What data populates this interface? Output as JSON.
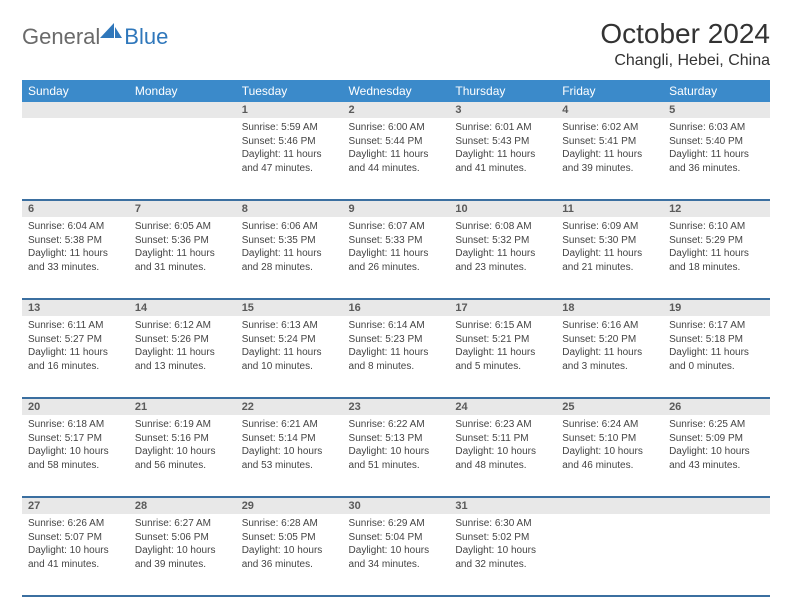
{
  "brand": {
    "part1": "General",
    "part2": "Blue"
  },
  "title": "October 2024",
  "location": "Changli, Hebei, China",
  "colors": {
    "header_bg": "#3b8aca",
    "header_text": "#ffffff",
    "daynum_bg": "#e8e8e8",
    "divider": "#3b6fa0",
    "logo_gray": "#6a6a6a",
    "logo_blue": "#2f77bb",
    "text": "#333333"
  },
  "typography": {
    "title_fontsize": 28,
    "location_fontsize": 16,
    "dayheader_fontsize": 12,
    "daynum_fontsize": 11,
    "cell_fontsize": 10
  },
  "day_headers": [
    "Sunday",
    "Monday",
    "Tuesday",
    "Wednesday",
    "Thursday",
    "Friday",
    "Saturday"
  ],
  "weeks": [
    [
      null,
      null,
      {
        "n": "1",
        "sr": "Sunrise: 5:59 AM",
        "ss": "Sunset: 5:46 PM",
        "dl": "Daylight: 11 hours and 47 minutes."
      },
      {
        "n": "2",
        "sr": "Sunrise: 6:00 AM",
        "ss": "Sunset: 5:44 PM",
        "dl": "Daylight: 11 hours and 44 minutes."
      },
      {
        "n": "3",
        "sr": "Sunrise: 6:01 AM",
        "ss": "Sunset: 5:43 PM",
        "dl": "Daylight: 11 hours and 41 minutes."
      },
      {
        "n": "4",
        "sr": "Sunrise: 6:02 AM",
        "ss": "Sunset: 5:41 PM",
        "dl": "Daylight: 11 hours and 39 minutes."
      },
      {
        "n": "5",
        "sr": "Sunrise: 6:03 AM",
        "ss": "Sunset: 5:40 PM",
        "dl": "Daylight: 11 hours and 36 minutes."
      }
    ],
    [
      {
        "n": "6",
        "sr": "Sunrise: 6:04 AM",
        "ss": "Sunset: 5:38 PM",
        "dl": "Daylight: 11 hours and 33 minutes."
      },
      {
        "n": "7",
        "sr": "Sunrise: 6:05 AM",
        "ss": "Sunset: 5:36 PM",
        "dl": "Daylight: 11 hours and 31 minutes."
      },
      {
        "n": "8",
        "sr": "Sunrise: 6:06 AM",
        "ss": "Sunset: 5:35 PM",
        "dl": "Daylight: 11 hours and 28 minutes."
      },
      {
        "n": "9",
        "sr": "Sunrise: 6:07 AM",
        "ss": "Sunset: 5:33 PM",
        "dl": "Daylight: 11 hours and 26 minutes."
      },
      {
        "n": "10",
        "sr": "Sunrise: 6:08 AM",
        "ss": "Sunset: 5:32 PM",
        "dl": "Daylight: 11 hours and 23 minutes."
      },
      {
        "n": "11",
        "sr": "Sunrise: 6:09 AM",
        "ss": "Sunset: 5:30 PM",
        "dl": "Daylight: 11 hours and 21 minutes."
      },
      {
        "n": "12",
        "sr": "Sunrise: 6:10 AM",
        "ss": "Sunset: 5:29 PM",
        "dl": "Daylight: 11 hours and 18 minutes."
      }
    ],
    [
      {
        "n": "13",
        "sr": "Sunrise: 6:11 AM",
        "ss": "Sunset: 5:27 PM",
        "dl": "Daylight: 11 hours and 16 minutes."
      },
      {
        "n": "14",
        "sr": "Sunrise: 6:12 AM",
        "ss": "Sunset: 5:26 PM",
        "dl": "Daylight: 11 hours and 13 minutes."
      },
      {
        "n": "15",
        "sr": "Sunrise: 6:13 AM",
        "ss": "Sunset: 5:24 PM",
        "dl": "Daylight: 11 hours and 10 minutes."
      },
      {
        "n": "16",
        "sr": "Sunrise: 6:14 AM",
        "ss": "Sunset: 5:23 PM",
        "dl": "Daylight: 11 hours and 8 minutes."
      },
      {
        "n": "17",
        "sr": "Sunrise: 6:15 AM",
        "ss": "Sunset: 5:21 PM",
        "dl": "Daylight: 11 hours and 5 minutes."
      },
      {
        "n": "18",
        "sr": "Sunrise: 6:16 AM",
        "ss": "Sunset: 5:20 PM",
        "dl": "Daylight: 11 hours and 3 minutes."
      },
      {
        "n": "19",
        "sr": "Sunrise: 6:17 AM",
        "ss": "Sunset: 5:18 PM",
        "dl": "Daylight: 11 hours and 0 minutes."
      }
    ],
    [
      {
        "n": "20",
        "sr": "Sunrise: 6:18 AM",
        "ss": "Sunset: 5:17 PM",
        "dl": "Daylight: 10 hours and 58 minutes."
      },
      {
        "n": "21",
        "sr": "Sunrise: 6:19 AM",
        "ss": "Sunset: 5:16 PM",
        "dl": "Daylight: 10 hours and 56 minutes."
      },
      {
        "n": "22",
        "sr": "Sunrise: 6:21 AM",
        "ss": "Sunset: 5:14 PM",
        "dl": "Daylight: 10 hours and 53 minutes."
      },
      {
        "n": "23",
        "sr": "Sunrise: 6:22 AM",
        "ss": "Sunset: 5:13 PM",
        "dl": "Daylight: 10 hours and 51 minutes."
      },
      {
        "n": "24",
        "sr": "Sunrise: 6:23 AM",
        "ss": "Sunset: 5:11 PM",
        "dl": "Daylight: 10 hours and 48 minutes."
      },
      {
        "n": "25",
        "sr": "Sunrise: 6:24 AM",
        "ss": "Sunset: 5:10 PM",
        "dl": "Daylight: 10 hours and 46 minutes."
      },
      {
        "n": "26",
        "sr": "Sunrise: 6:25 AM",
        "ss": "Sunset: 5:09 PM",
        "dl": "Daylight: 10 hours and 43 minutes."
      }
    ],
    [
      {
        "n": "27",
        "sr": "Sunrise: 6:26 AM",
        "ss": "Sunset: 5:07 PM",
        "dl": "Daylight: 10 hours and 41 minutes."
      },
      {
        "n": "28",
        "sr": "Sunrise: 6:27 AM",
        "ss": "Sunset: 5:06 PM",
        "dl": "Daylight: 10 hours and 39 minutes."
      },
      {
        "n": "29",
        "sr": "Sunrise: 6:28 AM",
        "ss": "Sunset: 5:05 PM",
        "dl": "Daylight: 10 hours and 36 minutes."
      },
      {
        "n": "30",
        "sr": "Sunrise: 6:29 AM",
        "ss": "Sunset: 5:04 PM",
        "dl": "Daylight: 10 hours and 34 minutes."
      },
      {
        "n": "31",
        "sr": "Sunrise: 6:30 AM",
        "ss": "Sunset: 5:02 PM",
        "dl": "Daylight: 10 hours and 32 minutes."
      },
      null,
      null
    ]
  ]
}
